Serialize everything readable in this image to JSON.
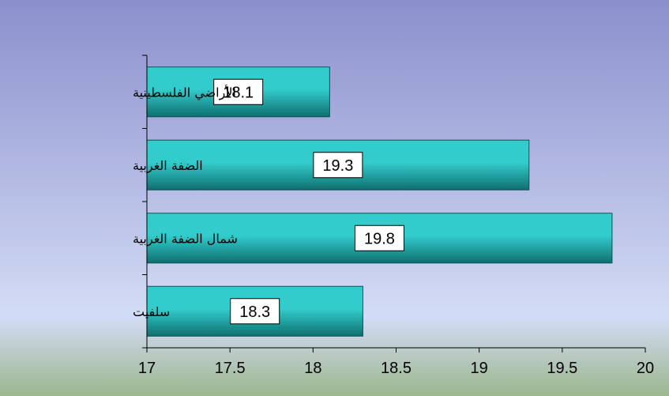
{
  "chart_data": {
    "type": "bar",
    "orientation": "horizontal",
    "categories": [
      "الأراضي الفلسطينية",
      "الضفة الغربية",
      "شمال الضفة الغربية",
      "سلفيت"
    ],
    "values": [
      18.1,
      19.3,
      19.8,
      18.3
    ],
    "data_labels": [
      "18.1",
      "19.3",
      "19.8",
      "18.3"
    ],
    "x_ticks": [
      17,
      17.5,
      18,
      18.5,
      19,
      19.5,
      20
    ],
    "x_tick_labels": [
      "17",
      "17.5",
      "18",
      "18.5",
      "19",
      "19.5",
      "20"
    ],
    "xlim": [
      17,
      20
    ],
    "title": "",
    "xlabel": "",
    "ylabel": "",
    "grid": false,
    "legend": "none",
    "colors": {
      "bar_light": "#33cccc",
      "bar_dark": "#0f6f6f",
      "bar_edge": "#0b5353",
      "background_top": "#8b8fcc",
      "background_mid": "#d3dcf5",
      "background_bottom": "#9cb68e",
      "axis": "#000000",
      "label_box": "#ffffff"
    }
  }
}
